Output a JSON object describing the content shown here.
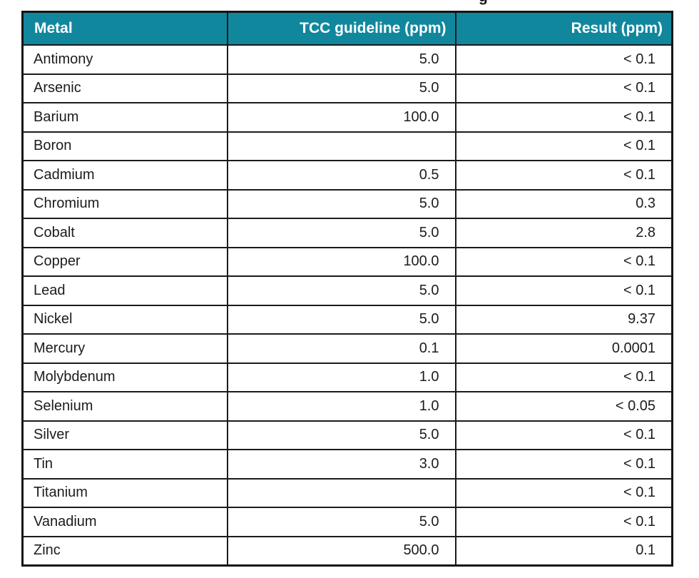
{
  "fragment": {
    "clipped_heading_text": "g"
  },
  "table": {
    "columns": [
      {
        "label": "Metal",
        "align": "left"
      },
      {
        "label": "TCC guideline (ppm)",
        "align": "right"
      },
      {
        "label": "Result (ppm)",
        "align": "right"
      }
    ],
    "rows": [
      {
        "metal": "Antimony",
        "guideline": "5.0",
        "result": "< 0.1"
      },
      {
        "metal": "Arsenic",
        "guideline": "5.0",
        "result": "< 0.1"
      },
      {
        "metal": "Barium",
        "guideline": "100.0",
        "result": "< 0.1"
      },
      {
        "metal": "Boron",
        "guideline": "",
        "result": "< 0.1"
      },
      {
        "metal": "Cadmium",
        "guideline": "0.5",
        "result": "< 0.1"
      },
      {
        "metal": "Chromium",
        "guideline": "5.0",
        "result": "0.3"
      },
      {
        "metal": "Cobalt",
        "guideline": "5.0",
        "result": "2.8"
      },
      {
        "metal": "Copper",
        "guideline": "100.0",
        "result": "< 0.1"
      },
      {
        "metal": "Lead",
        "guideline": "5.0",
        "result": "< 0.1"
      },
      {
        "metal": "Nickel",
        "guideline": "5.0",
        "result": "9.37"
      },
      {
        "metal": "Mercury",
        "guideline": "0.1",
        "result": "0.0001"
      },
      {
        "metal": "Molybdenum",
        "guideline": "1.0",
        "result": "< 0.1"
      },
      {
        "metal": "Selenium",
        "guideline": "1.0",
        "result": "< 0.05"
      },
      {
        "metal": "Silver",
        "guideline": "5.0",
        "result": "< 0.1"
      },
      {
        "metal": "Tin",
        "guideline": "3.0",
        "result": "< 0.1"
      },
      {
        "metal": "Titanium",
        "guideline": "",
        "result": "< 0.1"
      },
      {
        "metal": "Vanadium",
        "guideline": "5.0",
        "result": "< 0.1"
      },
      {
        "metal": "Zinc",
        "guideline": "500.0",
        "result": "0.1"
      }
    ]
  },
  "colors": {
    "header_bg": "#11879D",
    "header_text": "#FFFFFF",
    "border": "#1B1B1B",
    "body_text": "#1C1C1C",
    "page_bg": "#FFFFFF"
  }
}
